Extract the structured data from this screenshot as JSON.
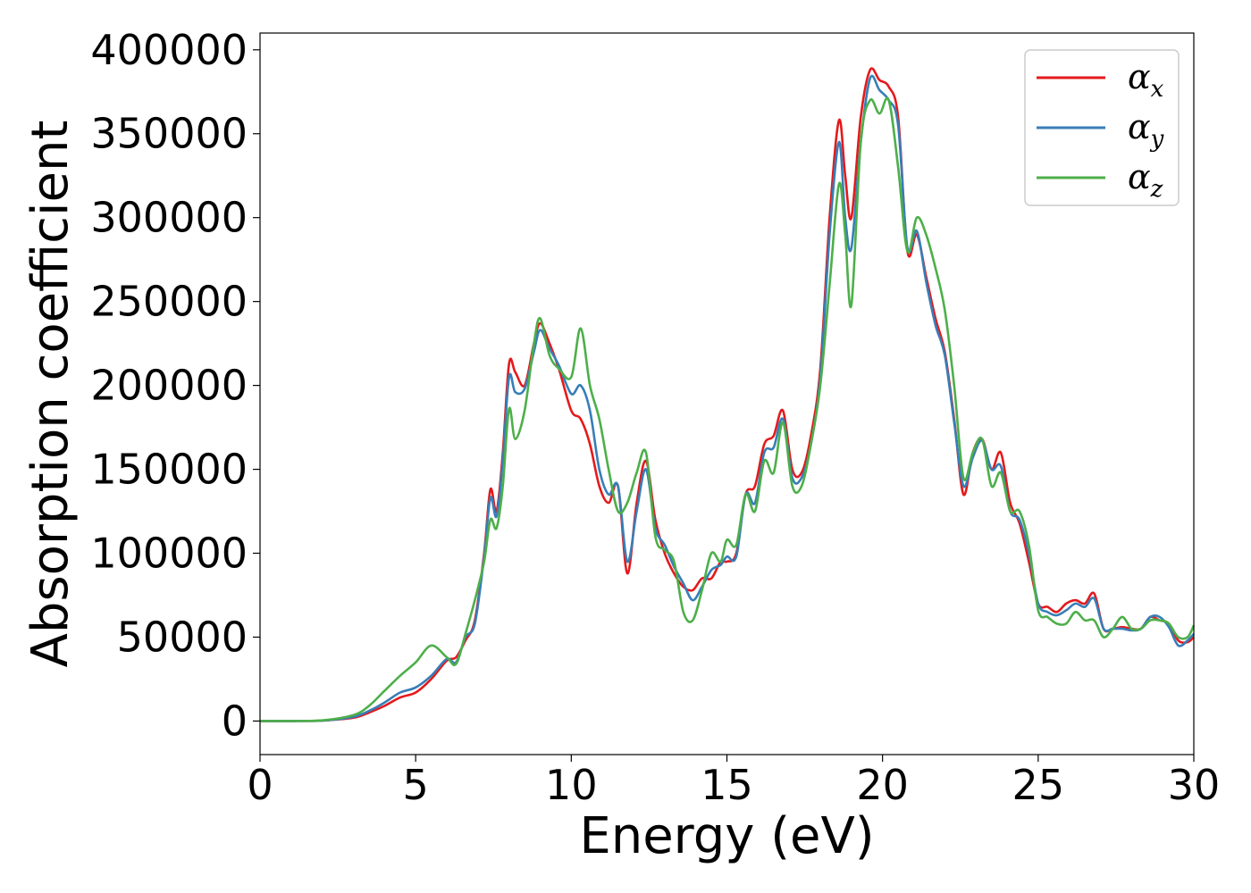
{
  "chart_data": {
    "type": "line",
    "title": "",
    "xlabel": "Energy (eV)",
    "ylabel": "Absorption coefficient",
    "xlim": [
      0,
      30
    ],
    "ylim": [
      -20000,
      410000
    ],
    "xticks": [
      0,
      5,
      10,
      15,
      20,
      25,
      30
    ],
    "xtick_labels": [
      "0",
      "5",
      "10",
      "15",
      "20",
      "25",
      "30"
    ],
    "yticks": [
      0,
      50000,
      100000,
      150000,
      200000,
      250000,
      300000,
      350000,
      400000
    ],
    "ytick_labels": [
      "0",
      "50000",
      "100000",
      "150000",
      "200000",
      "250000",
      "300000",
      "350000",
      "400000"
    ],
    "grid": false,
    "legend_position": "top-right",
    "x": [
      0,
      1,
      2,
      3,
      3.5,
      4,
      4.5,
      5,
      5.5,
      6,
      6.3,
      6.6,
      6.9,
      7.2,
      7.4,
      7.6,
      7.8,
      8,
      8.2,
      8.5,
      8.8,
      9,
      9.3,
      9.6,
      10,
      10.3,
      10.6,
      10.9,
      11.2,
      11.5,
      11.8,
      12.1,
      12.4,
      12.7,
      13,
      13.3,
      13.6,
      13.9,
      14.2,
      14.5,
      14.8,
      15,
      15.3,
      15.6,
      15.9,
      16.2,
      16.5,
      16.8,
      17.1,
      17.4,
      17.7,
      18,
      18.3,
      18.6,
      18.8,
      19,
      19.3,
      19.6,
      19.9,
      20.2,
      20.5,
      20.8,
      21.1,
      21.4,
      21.7,
      22,
      22.3,
      22.6,
      22.9,
      23.2,
      23.5,
      23.8,
      24.1,
      24.4,
      24.7,
      25,
      25.3,
      25.6,
      25.9,
      26.2,
      26.5,
      26.8,
      27.1,
      27.4,
      27.7,
      28,
      28.3,
      28.6,
      28.9,
      29.2,
      29.5,
      29.8,
      30
    ],
    "series": [
      {
        "name": "α_x",
        "legend_base": "α",
        "legend_sub": "x",
        "color": "#e41a1c",
        "values": [
          0,
          0,
          300,
          2000,
          5000,
          9000,
          14000,
          17000,
          25000,
          36000,
          38000,
          48000,
          60000,
          100000,
          138000,
          125000,
          160000,
          213000,
          208000,
          200000,
          225000,
          237000,
          225000,
          210000,
          185000,
          180000,
          165000,
          140000,
          130000,
          140000,
          88000,
          130000,
          155000,
          120000,
          100000,
          88000,
          80000,
          78000,
          85000,
          85000,
          95000,
          95000,
          100000,
          135000,
          140000,
          165000,
          170000,
          185000,
          150000,
          148000,
          170000,
          210000,
          300000,
          358000,
          325000,
          300000,
          360000,
          388000,
          382000,
          378000,
          360000,
          280000,
          290000,
          265000,
          240000,
          220000,
          180000,
          135000,
          160000,
          168000,
          150000,
          160000,
          130000,
          118000,
          95000,
          70000,
          68000,
          65000,
          70000,
          72000,
          70000,
          76000,
          55000,
          55000,
          56000,
          55000,
          55000,
          62000,
          60000,
          58000,
          48000,
          47000,
          50000
        ]
      },
      {
        "name": "α_y",
        "legend_base": "α",
        "legend_sub": "y",
        "color": "#377eb8",
        "values": [
          0,
          0,
          300,
          2500,
          6000,
          11000,
          17000,
          20000,
          27000,
          37000,
          35000,
          50000,
          58000,
          98000,
          133000,
          122000,
          155000,
          205000,
          196000,
          198000,
          220000,
          233000,
          222000,
          212000,
          195000,
          200000,
          185000,
          150000,
          135000,
          140000,
          95000,
          125000,
          150000,
          115000,
          105000,
          92000,
          82000,
          72000,
          80000,
          90000,
          93000,
          98000,
          98000,
          135000,
          130000,
          160000,
          163000,
          180000,
          145000,
          145000,
          165000,
          205000,
          290000,
          345000,
          300000,
          282000,
          345000,
          383000,
          376000,
          370000,
          355000,
          282000,
          292000,
          262000,
          236000,
          218000,
          178000,
          140000,
          157000,
          167000,
          150000,
          152000,
          125000,
          120000,
          100000,
          70000,
          65000,
          63000,
          66000,
          70000,
          68000,
          73000,
          55000,
          55000,
          55000,
          54000,
          55000,
          62000,
          62000,
          56000,
          45000,
          48000,
          52000
        ]
      },
      {
        "name": "α_z",
        "legend_base": "α",
        "legend_sub": "z",
        "color": "#4daf4a",
        "values": [
          0,
          0,
          400,
          3500,
          9000,
          18000,
          27000,
          35000,
          45000,
          38000,
          34000,
          52000,
          72000,
          95000,
          120000,
          115000,
          140000,
          186000,
          168000,
          185000,
          225000,
          240000,
          218000,
          210000,
          205000,
          234000,
          200000,
          180000,
          150000,
          125000,
          130000,
          148000,
          160000,
          110000,
          102000,
          95000,
          65000,
          60000,
          78000,
          100000,
          95000,
          108000,
          105000,
          135000,
          125000,
          155000,
          148000,
          178000,
          140000,
          140000,
          165000,
          200000,
          260000,
          320000,
          290000,
          248000,
          345000,
          370000,
          362000,
          370000,
          330000,
          280000,
          300000,
          290000,
          270000,
          245000,
          200000,
          145000,
          160000,
          168000,
          140000,
          148000,
          125000,
          125000,
          105000,
          66000,
          62000,
          58000,
          58000,
          65000,
          60000,
          60000,
          50000,
          55000,
          62000,
          55000,
          55000,
          60000,
          60000,
          58000,
          50000,
          50000,
          57000
        ]
      }
    ]
  }
}
